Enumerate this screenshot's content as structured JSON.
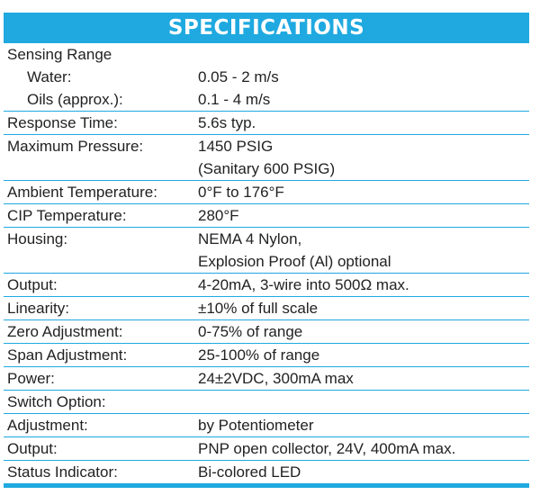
{
  "title": "SPECIFICATIONS",
  "colors": {
    "accent": "#1fa9e0",
    "text": "#222222",
    "header_text": "#ffffff"
  },
  "rows": [
    {
      "label": "Sensing Range",
      "value": ""
    },
    {
      "label": "Water:",
      "value": "0.05 - 2 m/s"
    },
    {
      "label": "Oils (approx.):",
      "value": "0.1 - 4 m/s"
    },
    {
      "label": "Response Time:",
      "value": "5.6s  typ."
    },
    {
      "label": "Maximum Pressure:",
      "value": "1450 PSIG",
      "value2": "(Sanitary 600 PSIG)"
    },
    {
      "label": "Ambient Temperature:",
      "value": "0°F to 176°F"
    },
    {
      "label": "CIP Temperature:",
      "value": "280°F"
    },
    {
      "label": "Housing:",
      "value": "NEMA 4 Nylon,",
      "value2": "Explosion Proof (Al) optional"
    },
    {
      "label": "Output:",
      "value": "4-20mA, 3-wire into 500Ω max."
    },
    {
      "label": "Linearity:",
      "value": "±10% of full scale"
    },
    {
      "label": "Zero Adjustment:",
      "value": "0-75% of range"
    },
    {
      "label": "Span Adjustment:",
      "value": "25-100% of range"
    },
    {
      "label": "Power:",
      "value": "24±2VDC, 300mA max"
    },
    {
      "label": "Switch Option:",
      "value": ""
    },
    {
      "label": "Adjustment:",
      "value": "by Potentiometer"
    },
    {
      "label": "Output:",
      "value": "PNP open collector, 24V, 400mA max."
    },
    {
      "label": "Status Indicator:",
      "value": "Bi-colored LED"
    }
  ]
}
